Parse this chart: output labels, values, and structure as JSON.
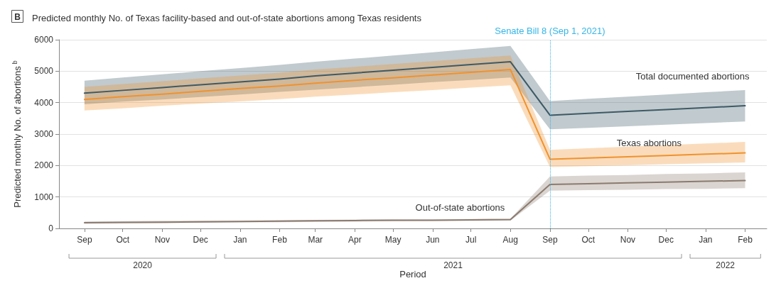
{
  "chart_data": {
    "type": "line",
    "title": "Predicted monthly No. of Texas facility-based and out-of-state abortions among Texas residents",
    "xlabel": "Period",
    "ylabel": "Predicted monthly No. of abortions$^{b}$",
    "x": [
      "2020-09",
      "2020-10",
      "2020-11",
      "2020-12",
      "2021-01",
      "2021-02",
      "2021-03",
      "2021-04",
      "2021-05",
      "2021-06",
      "2021-07",
      "2021-08",
      "2021-09",
      "2021-10",
      "2021-11",
      "2021-12",
      "2022-01",
      "2022-02"
    ],
    "series": [
      {
        "name": "Total documented abortions",
        "color": "#3d5a66",
        "values": [
          4300,
          4390,
          4480,
          4570,
          4660,
          4750,
          4850,
          4940,
          5030,
          5120,
          5210,
          5300,
          3600,
          3660,
          3720,
          3780,
          3840,
          3900
        ],
        "lower": [
          3950,
          4030,
          4100,
          4180,
          4260,
          4340,
          4410,
          4490,
          4570,
          4650,
          4720,
          4800,
          3150,
          3200,
          3250,
          3300,
          3350,
          3400
        ],
        "upper": [
          4700,
          4800,
          4900,
          5000,
          5100,
          5200,
          5300,
          5400,
          5500,
          5600,
          5700,
          5800,
          4050,
          4120,
          4190,
          4260,
          4330,
          4400
        ]
      },
      {
        "name": "Texas abortions",
        "color": "#f0922e",
        "values": [
          4100,
          4190,
          4270,
          4360,
          4450,
          4530,
          4620,
          4710,
          4790,
          4880,
          4960,
          5050,
          2200,
          2240,
          2280,
          2320,
          2360,
          2400
        ],
        "lower": [
          3750,
          3820,
          3900,
          3970,
          4040,
          4110,
          4190,
          4260,
          4330,
          4400,
          4480,
          4550,
          1950,
          1980,
          2010,
          2040,
          2070,
          2100
        ],
        "upper": [
          4500,
          4590,
          4680,
          4770,
          4860,
          4950,
          5050,
          5140,
          5230,
          5320,
          5410,
          5500,
          2500,
          2550,
          2600,
          2650,
          2700,
          2750
        ]
      },
      {
        "name": "Out-of-state abortions",
        "color": "#8c7b70",
        "values": [
          180,
          190,
          200,
          210,
          220,
          230,
          240,
          250,
          260,
          260,
          270,
          280,
          1400,
          1420,
          1450,
          1470,
          1500,
          1520
        ],
        "lower": [
          150,
          160,
          170,
          180,
          190,
          200,
          210,
          220,
          230,
          240,
          240,
          250,
          1200,
          1220,
          1230,
          1250,
          1260,
          1280
        ],
        "upper": [
          220,
          230,
          240,
          250,
          250,
          260,
          270,
          280,
          290,
          290,
          300,
          310,
          1650,
          1680,
          1700,
          1730,
          1750,
          1780
        ]
      }
    ],
    "xlim": [
      "2020-08-12",
      "2022-02-18"
    ],
    "xticks": [
      {
        "value": "2020-09",
        "label": "Sep"
      },
      {
        "value": "2020-10",
        "label": "Oct"
      },
      {
        "value": "2020-11",
        "label": "Nov"
      },
      {
        "value": "2020-12",
        "label": "Dec"
      },
      {
        "value": "2021-01",
        "label": "Jan"
      },
      {
        "value": "2021-02",
        "label": "Feb"
      },
      {
        "value": "2021-03",
        "label": "Mar"
      },
      {
        "value": "2021-04",
        "label": "Apr"
      },
      {
        "value": "2021-05",
        "label": "May"
      },
      {
        "value": "2021-06",
        "label": "Jun"
      },
      {
        "value": "2021-07",
        "label": "Jul"
      },
      {
        "value": "2021-08",
        "label": "Aug"
      },
      {
        "value": "2021-09",
        "label": "Sep"
      },
      {
        "value": "2021-10",
        "label": "Oct"
      },
      {
        "value": "2021-11",
        "label": "Nov"
      },
      {
        "value": "2021-12",
        "label": "Dec"
      },
      {
        "value": "2022-01",
        "label": "Jan"
      },
      {
        "value": "2022-02",
        "label": "Feb"
      }
    ],
    "ylim": [
      0,
      6000
    ],
    "yticks": [
      0,
      1000,
      2000,
      3000,
      4000,
      5000,
      6000
    ],
    "ref_lines": [
      {
        "axis": "x",
        "value": "2021-09-01",
        "label": "Senate Bill 8 (Sep 1, 2021)",
        "color": "#35b6e8",
        "line_style": "dotted"
      }
    ],
    "annotations": [
      "B",
      "2020",
      "2021",
      "2022"
    ],
    "grid": "y",
    "legend": false,
    "marker": "none",
    "line_style": "solid"
  }
}
